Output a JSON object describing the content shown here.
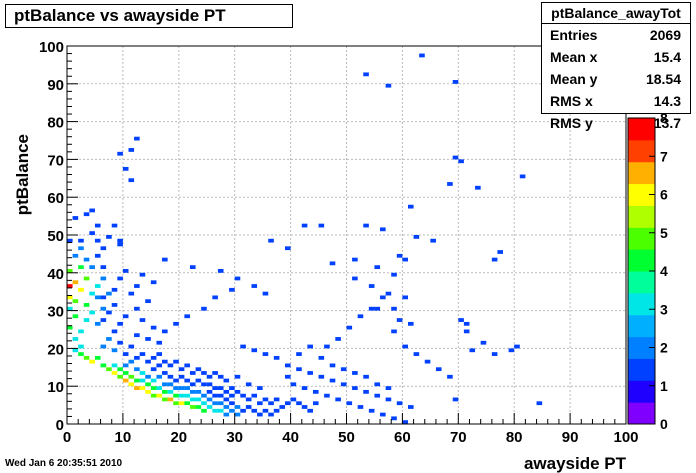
{
  "title": "ptBalance vs awayside PT",
  "stats": {
    "name": "ptBalance_awayTot",
    "rows": [
      {
        "label": "Entries",
        "value": "2069"
      },
      {
        "label": "Mean x",
        "value": "15.4"
      },
      {
        "label": "Mean y",
        "value": "18.54"
      },
      {
        "label": "RMS x",
        "value": "14.3"
      },
      {
        "label": "RMS y",
        "value": "13.7"
      }
    ]
  },
  "date": "Wed Jan  6 20:35:51 2010",
  "colors": {
    "palette": [
      "#7f00ff",
      "#1f00ff",
      "#0040ff",
      "#0080ff",
      "#00b0ff",
      "#00e5e5",
      "#00ff9a",
      "#00ff30",
      "#4cff00",
      "#b0ff00",
      "#ffff00",
      "#ffb000",
      "#ff4000",
      "#ff0000"
    ]
  },
  "chart_data": {
    "type": "heatmap",
    "title": "ptBalance vs awayside PT",
    "xlabel": "awayside PT",
    "ylabel": "ptBalance",
    "xlim": [
      0,
      100
    ],
    "ylim": [
      0,
      100
    ],
    "xticks": [
      "0",
      "10",
      "20",
      "30",
      "40",
      "50",
      "60",
      "70",
      "80",
      "90",
      "100"
    ],
    "yticks": [
      "0",
      "10",
      "20",
      "30",
      "40",
      "50",
      "60",
      "70",
      "80",
      "90",
      "100"
    ],
    "zlim": [
      0,
      8
    ],
    "zticks": [
      "0",
      "1",
      "2",
      "3",
      "4",
      "5",
      "6",
      "7",
      "8"
    ],
    "grid": true,
    "bin_width": [
      1,
      1
    ],
    "bins": [
      [
        0,
        36,
        8
      ],
      [
        1,
        37,
        7
      ],
      [
        0,
        33,
        6
      ],
      [
        2,
        35,
        6
      ],
      [
        1,
        32,
        5
      ],
      [
        3,
        38,
        5
      ],
      [
        0,
        40,
        5
      ],
      [
        2,
        41,
        4
      ],
      [
        1,
        28,
        4
      ],
      [
        3,
        31,
        4
      ],
      [
        0,
        25,
        4
      ],
      [
        2,
        24,
        3
      ],
      [
        4,
        34,
        3
      ],
      [
        1,
        22,
        3
      ],
      [
        5,
        36,
        3
      ],
      [
        3,
        27,
        3
      ],
      [
        4,
        29,
        3
      ],
      [
        2,
        20,
        3
      ],
      [
        0,
        30,
        3
      ],
      [
        5,
        33,
        2
      ],
      [
        6,
        38,
        2
      ],
      [
        4,
        41,
        2
      ],
      [
        1,
        44,
        2
      ],
      [
        2,
        46,
        2
      ],
      [
        0,
        48,
        1
      ],
      [
        3,
        43,
        2
      ],
      [
        6,
        30,
        2
      ],
      [
        5,
        26,
        2
      ],
      [
        7,
        34,
        2
      ],
      [
        6,
        41,
        1
      ],
      [
        2,
        18,
        4
      ],
      [
        3,
        17,
        5
      ],
      [
        4,
        16,
        6
      ],
      [
        5,
        17,
        4
      ],
      [
        1,
        19,
        3
      ],
      [
        6,
        15,
        4
      ],
      [
        7,
        14,
        5
      ],
      [
        8,
        13,
        6
      ],
      [
        9,
        12,
        5
      ],
      [
        10,
        11,
        7
      ],
      [
        11,
        10,
        6
      ],
      [
        12,
        9,
        7
      ],
      [
        13,
        9,
        6
      ],
      [
        14,
        8,
        6
      ],
      [
        15,
        7,
        5
      ],
      [
        16,
        7,
        6
      ],
      [
        17,
        6,
        5
      ],
      [
        18,
        6,
        7
      ],
      [
        19,
        5,
        5
      ],
      [
        20,
        5,
        6
      ],
      [
        21,
        5,
        4
      ],
      [
        22,
        4,
        5
      ],
      [
        23,
        4,
        4
      ],
      [
        24,
        3,
        4
      ],
      [
        25,
        4,
        3
      ],
      [
        26,
        3,
        3
      ],
      [
        27,
        3,
        3
      ],
      [
        28,
        2,
        2
      ],
      [
        29,
        3,
        2
      ],
      [
        30,
        2,
        2
      ],
      [
        8,
        15,
        3
      ],
      [
        9,
        14,
        4
      ],
      [
        10,
        13,
        4
      ],
      [
        11,
        12,
        5
      ],
      [
        12,
        11,
        4
      ],
      [
        13,
        11,
        3
      ],
      [
        14,
        10,
        4
      ],
      [
        15,
        9,
        4
      ],
      [
        16,
        9,
        3
      ],
      [
        17,
        8,
        4
      ],
      [
        18,
        8,
        3
      ],
      [
        19,
        7,
        4
      ],
      [
        20,
        7,
        3
      ],
      [
        21,
        7,
        3
      ],
      [
        22,
        6,
        3
      ],
      [
        23,
        6,
        3
      ],
      [
        24,
        5,
        3
      ],
      [
        25,
        6,
        2
      ],
      [
        26,
        5,
        2
      ],
      [
        27,
        5,
        2
      ],
      [
        28,
        4,
        2
      ],
      [
        29,
        5,
        1
      ],
      [
        30,
        4,
        2
      ],
      [
        31,
        3,
        1
      ],
      [
        32,
        4,
        1
      ],
      [
        33,
        3,
        1
      ],
      [
        34,
        2,
        1
      ],
      [
        35,
        3,
        1
      ],
      [
        36,
        2,
        1
      ],
      [
        37,
        3,
        1
      ],
      [
        10,
        15,
        2
      ],
      [
        11,
        16,
        2
      ],
      [
        12,
        14,
        2
      ],
      [
        13,
        13,
        3
      ],
      [
        14,
        12,
        2
      ],
      [
        15,
        11,
        3
      ],
      [
        16,
        12,
        2
      ],
      [
        17,
        10,
        2
      ],
      [
        18,
        10,
        2
      ],
      [
        19,
        9,
        2
      ],
      [
        20,
        9,
        2
      ],
      [
        21,
        9,
        2
      ],
      [
        22,
        8,
        2
      ],
      [
        23,
        8,
        2
      ],
      [
        24,
        7,
        2
      ],
      [
        25,
        8,
        1
      ],
      [
        26,
        7,
        1
      ],
      [
        27,
        7,
        1
      ],
      [
        28,
        6,
        1
      ],
      [
        29,
        7,
        1
      ],
      [
        15,
        14,
        1
      ],
      [
        16,
        15,
        1
      ],
      [
        17,
        13,
        1
      ],
      [
        18,
        12,
        1
      ],
      [
        19,
        11,
        1
      ],
      [
        20,
        12,
        1
      ],
      [
        21,
        11,
        1
      ],
      [
        22,
        10,
        1
      ],
      [
        23,
        11,
        1
      ],
      [
        24,
        10,
        1
      ],
      [
        25,
        10,
        1
      ],
      [
        26,
        9,
        1
      ],
      [
        27,
        9,
        1
      ],
      [
        28,
        8,
        1
      ],
      [
        29,
        9,
        1
      ],
      [
        30,
        8,
        1
      ],
      [
        31,
        7,
        1
      ],
      [
        32,
        6,
        1
      ],
      [
        33,
        7,
        1
      ],
      [
        34,
        5,
        1
      ],
      [
        35,
        6,
        1
      ],
      [
        36,
        5,
        1
      ],
      [
        37,
        6,
        1
      ],
      [
        38,
        4,
        1
      ],
      [
        39,
        5,
        1
      ],
      [
        40,
        6,
        1
      ],
      [
        41,
        5,
        1
      ],
      [
        42,
        4,
        1
      ],
      [
        43,
        3,
        1
      ],
      [
        44,
        5,
        1
      ],
      [
        12,
        17,
        1
      ],
      [
        13,
        18,
        1
      ],
      [
        14,
        16,
        1
      ],
      [
        15,
        17,
        1
      ],
      [
        16,
        18,
        1
      ],
      [
        17,
        16,
        1
      ],
      [
        18,
        15,
        1
      ],
      [
        19,
        16,
        1
      ],
      [
        20,
        14,
        1
      ],
      [
        21,
        15,
        1
      ],
      [
        22,
        13,
        1
      ],
      [
        23,
        14,
        1
      ],
      [
        24,
        13,
        1
      ],
      [
        25,
        12,
        1
      ],
      [
        26,
        13,
        1
      ],
      [
        27,
        12,
        1
      ],
      [
        28,
        11,
        1
      ],
      [
        30,
        12,
        1
      ],
      [
        32,
        10,
        1
      ],
      [
        34,
        9,
        1
      ],
      [
        6,
        20,
        2
      ],
      [
        7,
        22,
        2
      ],
      [
        8,
        19,
        2
      ],
      [
        9,
        21,
        1
      ],
      [
        10,
        18,
        1
      ],
      [
        11,
        20,
        1
      ],
      [
        8,
        24,
        1
      ],
      [
        9,
        26,
        1
      ],
      [
        6,
        27,
        1
      ],
      [
        7,
        29,
        1
      ],
      [
        8,
        31,
        1
      ],
      [
        6,
        33,
        1
      ],
      [
        8,
        35,
        1
      ],
      [
        9,
        38,
        1
      ],
      [
        10,
        40,
        1
      ],
      [
        5,
        44,
        1
      ],
      [
        6,
        46,
        1
      ],
      [
        7,
        49,
        1
      ],
      [
        8,
        52,
        1
      ],
      [
        4,
        50,
        1
      ],
      [
        3,
        55,
        1
      ],
      [
        2,
        48,
        1
      ],
      [
        5,
        48,
        1
      ],
      [
        9,
        47,
        1
      ],
      [
        13,
        39,
        1
      ],
      [
        12,
        36,
        1
      ],
      [
        15,
        37,
        1
      ],
      [
        11,
        34,
        1
      ],
      [
        14,
        32,
        1
      ],
      [
        12,
        30,
        1
      ],
      [
        10,
        28,
        1
      ],
      [
        13,
        27,
        1
      ],
      [
        15,
        25,
        1
      ],
      [
        12,
        23,
        1
      ],
      [
        14,
        22,
        1
      ],
      [
        16,
        21,
        1
      ],
      [
        17,
        24,
        1
      ],
      [
        19,
        26,
        1
      ],
      [
        21,
        28,
        1
      ],
      [
        24,
        30,
        1
      ],
      [
        26,
        33,
        1
      ],
      [
        29,
        35,
        1
      ],
      [
        31,
        20,
        1
      ],
      [
        33,
        19,
        1
      ],
      [
        35,
        18,
        1
      ],
      [
        37,
        17,
        1
      ],
      [
        39,
        15,
        1
      ],
      [
        41,
        14,
        1
      ],
      [
        43,
        13,
        1
      ],
      [
        45,
        12,
        1
      ],
      [
        47,
        11,
        1
      ],
      [
        49,
        10,
        1
      ],
      [
        51,
        9,
        1
      ],
      [
        53,
        8,
        1
      ],
      [
        55,
        7,
        1
      ],
      [
        57,
        6,
        1
      ],
      [
        59,
        5,
        1
      ],
      [
        61,
        4,
        1
      ],
      [
        46,
        20,
        1
      ],
      [
        48,
        22,
        1
      ],
      [
        50,
        25,
        1
      ],
      [
        52,
        28,
        1
      ],
      [
        54,
        30,
        1
      ],
      [
        56,
        33,
        1
      ],
      [
        58,
        24,
        1
      ],
      [
        60,
        20,
        1
      ],
      [
        62,
        18,
        1
      ],
      [
        64,
        16,
        1
      ],
      [
        66,
        14,
        1
      ],
      [
        68,
        12,
        1
      ],
      [
        69,
        6,
        1
      ],
      [
        72,
        19,
        1
      ],
      [
        74,
        21,
        1
      ],
      [
        76,
        18,
        1
      ],
      [
        79,
        19,
        1
      ],
      [
        80,
        20,
        1
      ],
      [
        84,
        5,
        1
      ],
      [
        70,
        27,
        1
      ],
      [
        71,
        24,
        1
      ],
      [
        39,
        12,
        1
      ],
      [
        40,
        10,
        1
      ],
      [
        42,
        9,
        1
      ],
      [
        44,
        8,
        1
      ],
      [
        46,
        7,
        1
      ],
      [
        48,
        6,
        1
      ],
      [
        50,
        5,
        1
      ],
      [
        52,
        4,
        1
      ],
      [
        54,
        3,
        1
      ],
      [
        56,
        2,
        1
      ],
      [
        58,
        1,
        1
      ],
      [
        60,
        0,
        1
      ],
      [
        45,
        17,
        1
      ],
      [
        47,
        15,
        1
      ],
      [
        49,
        14,
        1
      ],
      [
        51,
        13,
        1
      ],
      [
        53,
        12,
        1
      ],
      [
        55,
        10,
        1
      ],
      [
        57,
        9,
        1
      ],
      [
        41,
        18,
        1
      ],
      [
        43,
        20,
        1
      ],
      [
        53,
        92,
        1
      ],
      [
        57,
        89,
        1
      ],
      [
        63,
        97,
        1
      ],
      [
        69,
        90,
        1
      ],
      [
        69,
        70,
        1
      ],
      [
        70,
        69,
        1
      ],
      [
        68,
        63,
        1
      ],
      [
        73,
        62,
        1
      ],
      [
        81,
        65,
        1
      ],
      [
        11,
        72,
        1
      ],
      [
        12,
        75,
        1
      ],
      [
        9,
        71,
        1
      ],
      [
        10,
        67,
        1
      ],
      [
        11,
        64,
        1
      ],
      [
        1,
        54,
        1
      ],
      [
        4,
        56,
        1
      ],
      [
        5,
        52,
        1
      ],
      [
        9,
        48,
        1
      ],
      [
        17,
        43,
        1
      ],
      [
        22,
        41,
        1
      ],
      [
        27,
        40,
        1
      ],
      [
        30,
        38,
        1
      ],
      [
        33,
        36,
        1
      ],
      [
        35,
        34,
        1
      ],
      [
        47,
        42,
        1
      ],
      [
        51,
        43,
        1
      ],
      [
        53,
        52,
        1
      ],
      [
        56,
        51,
        1
      ],
      [
        61,
        57,
        1
      ],
      [
        62,
        49,
        1
      ],
      [
        65,
        48,
        1
      ],
      [
        76,
        43,
        1
      ],
      [
        77,
        45,
        1
      ],
      [
        55,
        41,
        1
      ],
      [
        59,
        44,
        1
      ],
      [
        60,
        43,
        1
      ],
      [
        51,
        38,
        1
      ],
      [
        55,
        30,
        1
      ],
      [
        58,
        39,
        1
      ],
      [
        60,
        33,
        1
      ],
      [
        42,
        52,
        1
      ],
      [
        45,
        52,
        1
      ],
      [
        36,
        48,
        1
      ],
      [
        39,
        46,
        1
      ],
      [
        54,
        36,
        1
      ],
      [
        57,
        34,
        1
      ],
      [
        58,
        30,
        1
      ],
      [
        59,
        27,
        1
      ],
      [
        61,
        26,
        1
      ],
      [
        71,
        26,
        1
      ]
    ]
  }
}
